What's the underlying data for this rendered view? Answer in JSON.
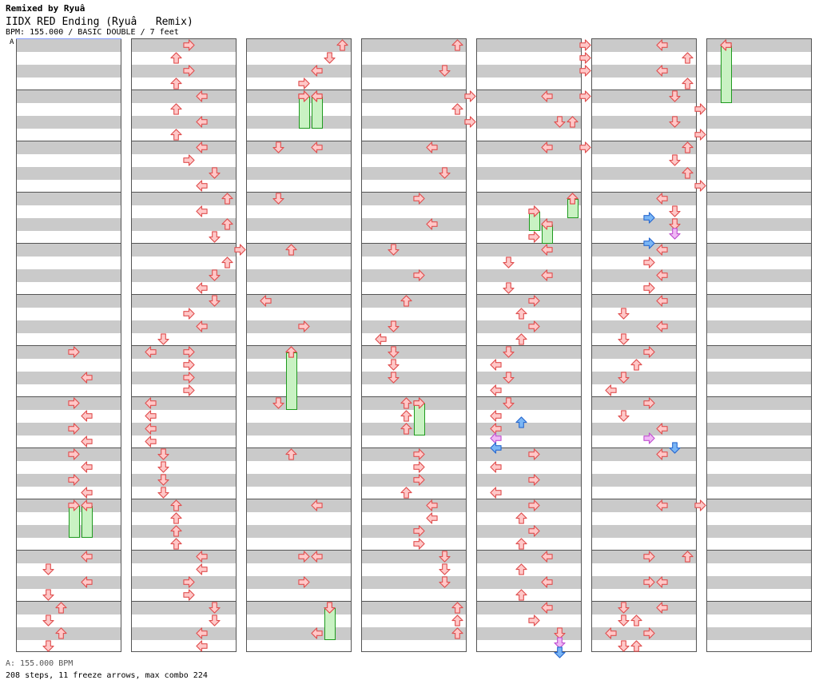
{
  "header": {
    "remixer": "Remixed by Ryuâ",
    "title": "IIDX RED Ending (Ryuâ   Remix)",
    "info": "BPM: 155.000 / BASIC DOUBLE / 7 feet",
    "bpm_marker": "A"
  },
  "footer": {
    "bpm_line": "A: 155.000 BPM",
    "stats": "208 steps, 11 freeze arrows, max combo 224"
  },
  "colors": {
    "normal_fill": "#ffc8c8",
    "normal_stroke": "#e05050",
    "blue_fill": "#7ab6f5",
    "blue_stroke": "#2a6ad0",
    "pink_fill": "#f0b8f5",
    "pink_stroke": "#c050d0",
    "freeze_fill": "#c9f2c3",
    "freeze_stroke": "#1f9a1f"
  },
  "icons": {
    "arrow": "step-arrow-icon"
  }
}
